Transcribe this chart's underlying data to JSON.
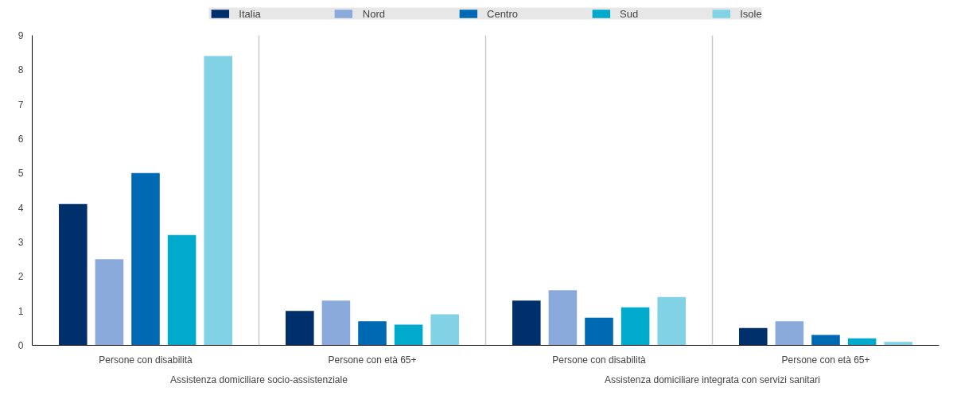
{
  "chart_data": {
    "type": "bar",
    "categories": [
      "Persone con disabilità",
      "Persone con età 65+",
      "Persone con disabilità",
      "Persone con età 65+"
    ],
    "annotations": [
      "Assistenza domiciliare socio-assistenziale",
      "Assistenza domiciliare integrata con servizi sanitari"
    ],
    "series": [
      {
        "name": "Italia",
        "color": "#00306b",
        "values": [
          4.1,
          1.0,
          1.3,
          0.5
        ]
      },
      {
        "name": "Nord",
        "color": "#8aaadc",
        "values": [
          2.5,
          1.3,
          1.6,
          0.7
        ]
      },
      {
        "name": "Centro",
        "color": "#0069b4",
        "values": [
          5.0,
          0.7,
          0.8,
          0.3
        ]
      },
      {
        "name": "Sud",
        "color": "#00aacc",
        "values": [
          3.2,
          0.6,
          1.1,
          0.2
        ]
      },
      {
        "name": "Isole",
        "color": "#82d2e6",
        "values": [
          8.4,
          0.9,
          1.4,
          0.1
        ]
      }
    ],
    "ylim": [
      0,
      9
    ],
    "yticks": [
      0,
      1,
      2,
      3,
      4,
      5,
      6,
      7,
      8,
      9
    ],
    "grid": false,
    "legend": "top"
  }
}
